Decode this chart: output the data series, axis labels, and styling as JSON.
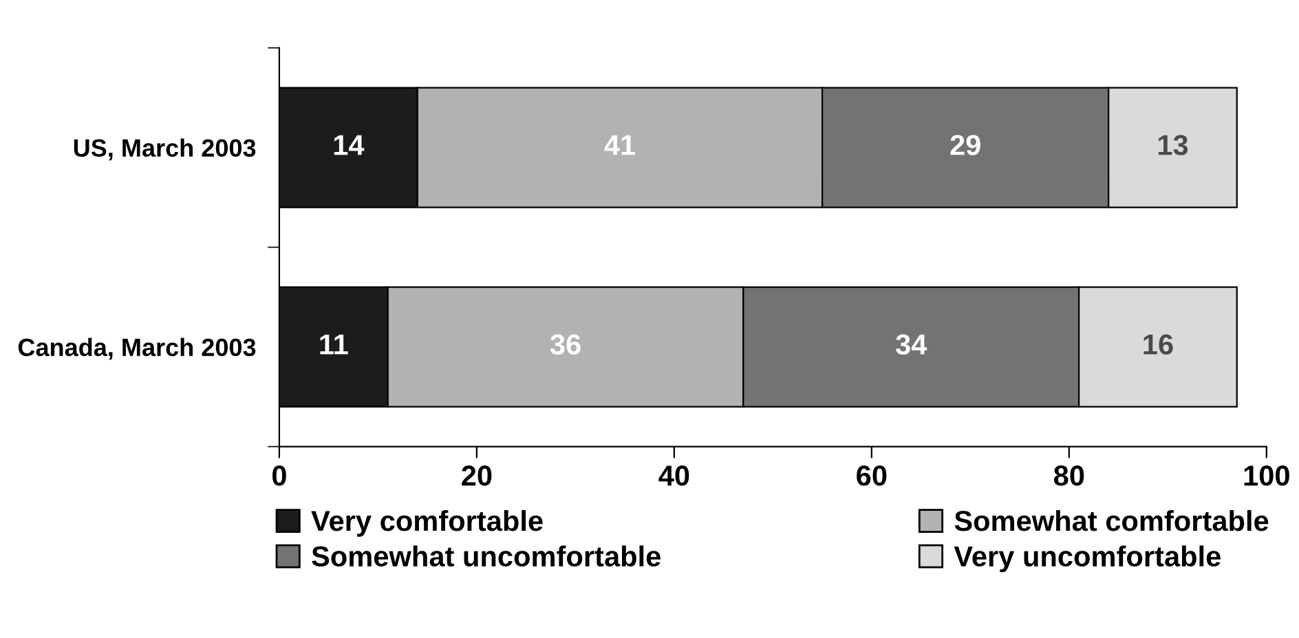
{
  "chart_data": {
    "type": "bar",
    "orientation": "horizontal",
    "stacked": true,
    "categories": [
      "US, March 2003",
      "Canada, March 2003"
    ],
    "series": [
      {
        "name": "Very comfortable",
        "color": "#1c1c1c",
        "values": [
          14,
          11
        ]
      },
      {
        "name": "Somewhat comfortable",
        "color": "#b2b2b2",
        "values": [
          41,
          36
        ]
      },
      {
        "name": "Somewhat uncomfortable",
        "color": "#737373",
        "values": [
          29,
          34
        ]
      },
      {
        "name": "Very uncomfortable",
        "color": "#dadada",
        "values": [
          13,
          16
        ]
      }
    ],
    "xlim": [
      0,
      100
    ],
    "xticks": [
      0,
      20,
      40,
      60,
      80,
      100
    ],
    "data_labels": true,
    "legend": "bottom",
    "grid": false
  }
}
